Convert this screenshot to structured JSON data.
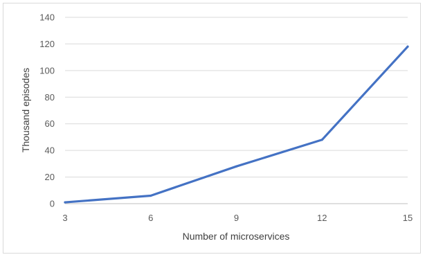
{
  "chart_data": {
    "type": "line",
    "title": "",
    "xlabel": "Number of microservices",
    "ylabel": "Thousand episodes",
    "x": [
      3,
      6,
      9,
      12,
      15
    ],
    "series": [
      {
        "values": [
          1,
          6,
          28,
          48,
          118
        ]
      }
    ],
    "xticks": [
      "3",
      "6",
      "9",
      "12",
      "15"
    ],
    "yticks": [
      "0",
      "20",
      "40",
      "60",
      "80",
      "100",
      "120",
      "140"
    ],
    "xlim": [
      3,
      15
    ],
    "ylim": [
      0,
      140
    ],
    "grid": "horizontal",
    "legend": "none",
    "colors": {
      "line": "#4472c4",
      "grid": "#d9d9d9",
      "axis": "#bfbfbf",
      "text": "#595959"
    }
  }
}
